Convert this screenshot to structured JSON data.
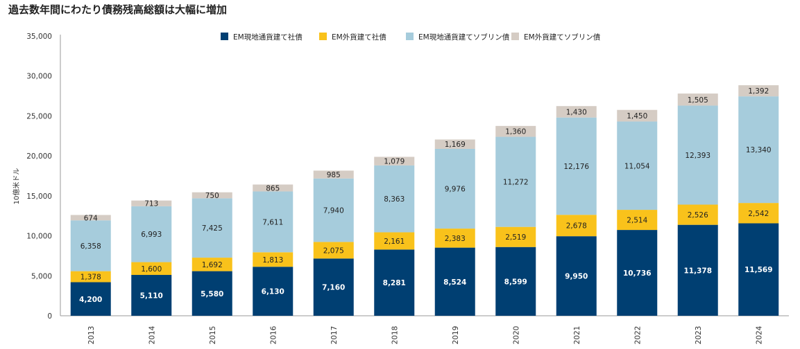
{
  "chart_data": {
    "type": "bar",
    "stacked": true,
    "title": "過去数年間にわたり債務残高総額は大幅に増加",
    "xlabel": "",
    "ylabel": "10億米ドル",
    "ylim": [
      0,
      35000
    ],
    "yticks": [
      0,
      5000,
      10000,
      15000,
      20000,
      25000,
      30000,
      35000
    ],
    "ytick_labels": [
      "0",
      "5,000",
      "10,000",
      "15,000",
      "20,000",
      "25,000",
      "30,000",
      "35,000"
    ],
    "grid": false,
    "legend_position": "top-center",
    "categories": [
      "2013",
      "2014",
      "2015",
      "2016",
      "2017",
      "2018",
      "2019",
      "2020",
      "2021",
      "2022",
      "2023",
      "2024"
    ],
    "series": [
      {
        "name": "EM現地通貨建て社債",
        "color": "#003f72",
        "label_color": "#ffffff",
        "values": [
          4200,
          5110,
          5580,
          6130,
          7160,
          8281,
          8524,
          8599,
          9950,
          10736,
          11378,
          11569
        ],
        "labels": [
          "4,200",
          "5,110",
          "5,580",
          "6,130",
          "7,160",
          "8,281",
          "8,524",
          "8,599",
          "9,950",
          "10,736",
          "11,378",
          "11,569"
        ]
      },
      {
        "name": "EM外貨建て社債",
        "color": "#f9c21b",
        "label_color": "#222222",
        "values": [
          1378,
          1600,
          1692,
          1813,
          2075,
          2161,
          2383,
          2519,
          2678,
          2514,
          2526,
          2542
        ],
        "labels": [
          "1,378",
          "1,600",
          "1,692",
          "1,813",
          "2,075",
          "2,161",
          "2,383",
          "2,519",
          "2,678",
          "2,514",
          "2,526",
          "2,542"
        ]
      },
      {
        "name": "EM現地通貨建てソブリン債",
        "color": "#a6ccdc",
        "label_color": "#222222",
        "values": [
          6358,
          6993,
          7425,
          7611,
          7940,
          8363,
          9976,
          11272,
          12176,
          11054,
          12393,
          13340
        ],
        "labels": [
          "6,358",
          "6,993",
          "7,425",
          "7,611",
          "7,940",
          "8,363",
          "9,976",
          "11,272",
          "12,176",
          "11,054",
          "12,393",
          "13,340"
        ]
      },
      {
        "name": "EM外貨建てソブリン債",
        "color": "#d5ccc4",
        "label_color": "#222222",
        "values": [
          674,
          713,
          750,
          865,
          985,
          1079,
          1169,
          1360,
          1430,
          1450,
          1505,
          1392
        ],
        "labels": [
          "674",
          "713",
          "750",
          "865",
          "985",
          "1,079",
          "1,169",
          "1,360",
          "1,430",
          "1,450",
          "1,505",
          "1,392"
        ]
      }
    ]
  }
}
